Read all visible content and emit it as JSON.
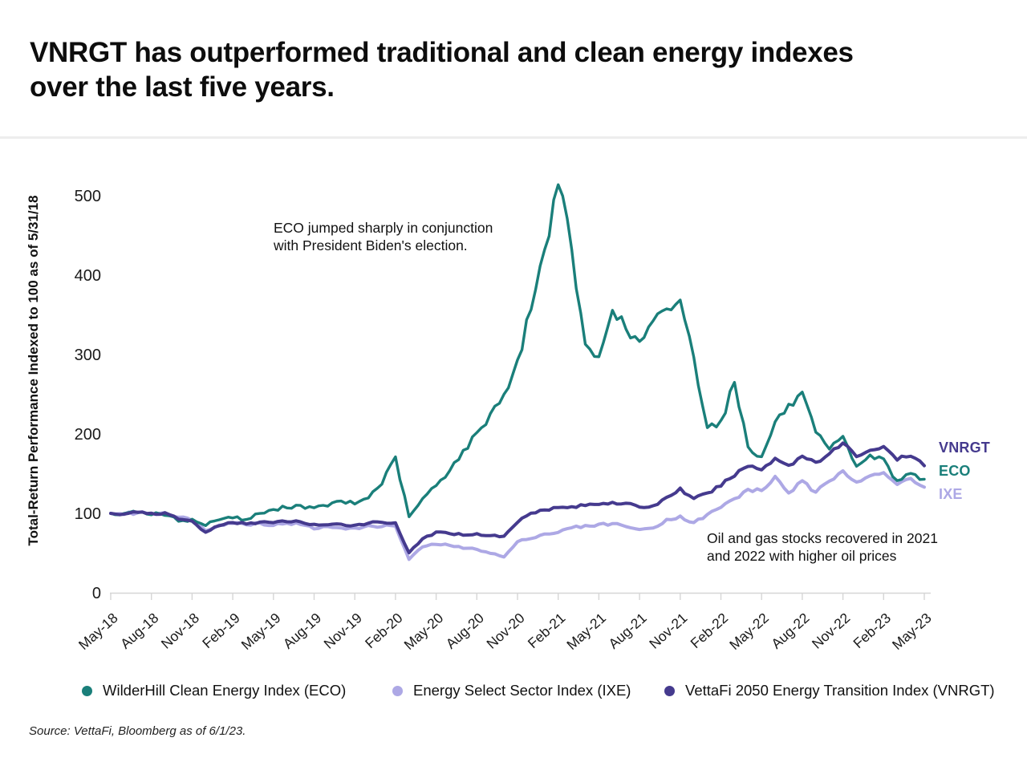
{
  "header": {
    "title": "VNRGT has outperformed traditional and clean energy indexes\nover the last five years."
  },
  "annotations": {
    "eco_election": "ECO jumped sharply in conjunction\nwith President Biden's election.",
    "oil_recovery": "Oil and gas stocks recovered in 2021\nand 2022 with higher oil prices"
  },
  "end_labels": {
    "vnrgt": "VNRGT",
    "eco": "ECO",
    "ixe": "IXE"
  },
  "legend": {
    "eco": "WilderHill Clean Energy Index (ECO)",
    "ixe": "Energy Select Sector Index (IXE)",
    "vnrgt": "VettaFi 2050 Energy Transition Index (VNRGT)"
  },
  "source": "Source: VettaFi, Bloomberg as of 6/1/23.",
  "chart_data": {
    "type": "line",
    "title": "",
    "ylabel": "Total-Return Performance Indexed to 100 as of 5/31/18",
    "xlabel": "",
    "y_ticks": [
      0,
      100,
      200,
      300,
      400,
      500
    ],
    "ylim": [
      0,
      540
    ],
    "grid": false,
    "legend_position": "bottom",
    "x_unit": "month",
    "x_tick_interval_months": 3,
    "x_tick_labels": [
      "May-18",
      "Aug-18",
      "Nov-18",
      "Feb-19",
      "May-19",
      "Aug-19",
      "Nov-19",
      "Feb-20",
      "May-20",
      "Aug-20",
      "Nov-20",
      "Feb-21",
      "May-21",
      "Aug-21",
      "Nov-21",
      "Feb-22",
      "May-22",
      "Aug-22",
      "Nov-22",
      "Feb-23",
      "May-23"
    ],
    "annotations": [
      {
        "text": "ECO jumped sharply in conjunction\nwith President Biden's election.",
        "near_x": "Nov-20",
        "near_y": 480
      },
      {
        "text": "Oil and gas stocks recovered in 2021\nand 2022 with higher oil prices",
        "near_x": "Aug-22",
        "near_y": 70
      }
    ],
    "series": [
      {
        "name": "WilderHill Clean Energy Index (ECO)",
        "short": "ECO",
        "color": "#1A7F7A",
        "monthly_values": [
          100,
          100,
          102,
          99,
          98,
          91,
          92,
          85,
          93,
          95,
          92,
          100,
          104,
          108,
          110,
          106,
          110,
          115,
          112,
          120,
          138,
          170,
          95,
          118,
          135,
          155,
          178,
          200,
          225,
          250,
          290,
          360,
          430,
          520,
          430,
          310,
          295,
          360,
          330,
          315,
          340,
          355,
          370,
          295,
          210,
          215,
          265,
          185,
          170,
          215,
          235,
          250,
          200,
          180,
          195,
          160,
          172,
          168,
          140,
          152,
          143
        ]
      },
      {
        "name": "Energy Select Sector Index (IXE)",
        "short": "IXE",
        "color": "#ADA8E5",
        "monthly_values": [
          100,
          99,
          101,
          100,
          101,
          95,
          92,
          78,
          86,
          88,
          86,
          88,
          85,
          88,
          86,
          81,
          83,
          82,
          81,
          84,
          84,
          84,
          42,
          58,
          61,
          60,
          56,
          55,
          50,
          45,
          64,
          69,
          74,
          76,
          82,
          84,
          86,
          87,
          84,
          79,
          82,
          92,
          96,
          88,
          98,
          108,
          118,
          130,
          128,
          146,
          126,
          140,
          126,
          140,
          155,
          140,
          148,
          150,
          136,
          145,
          133
        ]
      },
      {
        "name": "VettaFi 2050 Energy Transition Index (VNRGT)",
        "short": "VNRGT",
        "color": "#453A8E",
        "monthly_values": [
          100,
          99,
          101,
          100,
          100,
          93,
          90,
          76,
          85,
          88,
          87,
          89,
          88,
          90,
          89,
          86,
          85,
          86,
          85,
          88,
          89,
          88,
          50,
          68,
          76,
          75,
          73,
          74,
          72,
          71,
          89,
          101,
          105,
          107,
          108,
          110,
          112,
          114,
          112,
          108,
          109,
          120,
          131,
          118,
          125,
          135,
          148,
          160,
          155,
          170,
          160,
          172,
          165,
          175,
          188,
          172,
          180,
          183,
          168,
          172,
          160
        ]
      }
    ]
  }
}
